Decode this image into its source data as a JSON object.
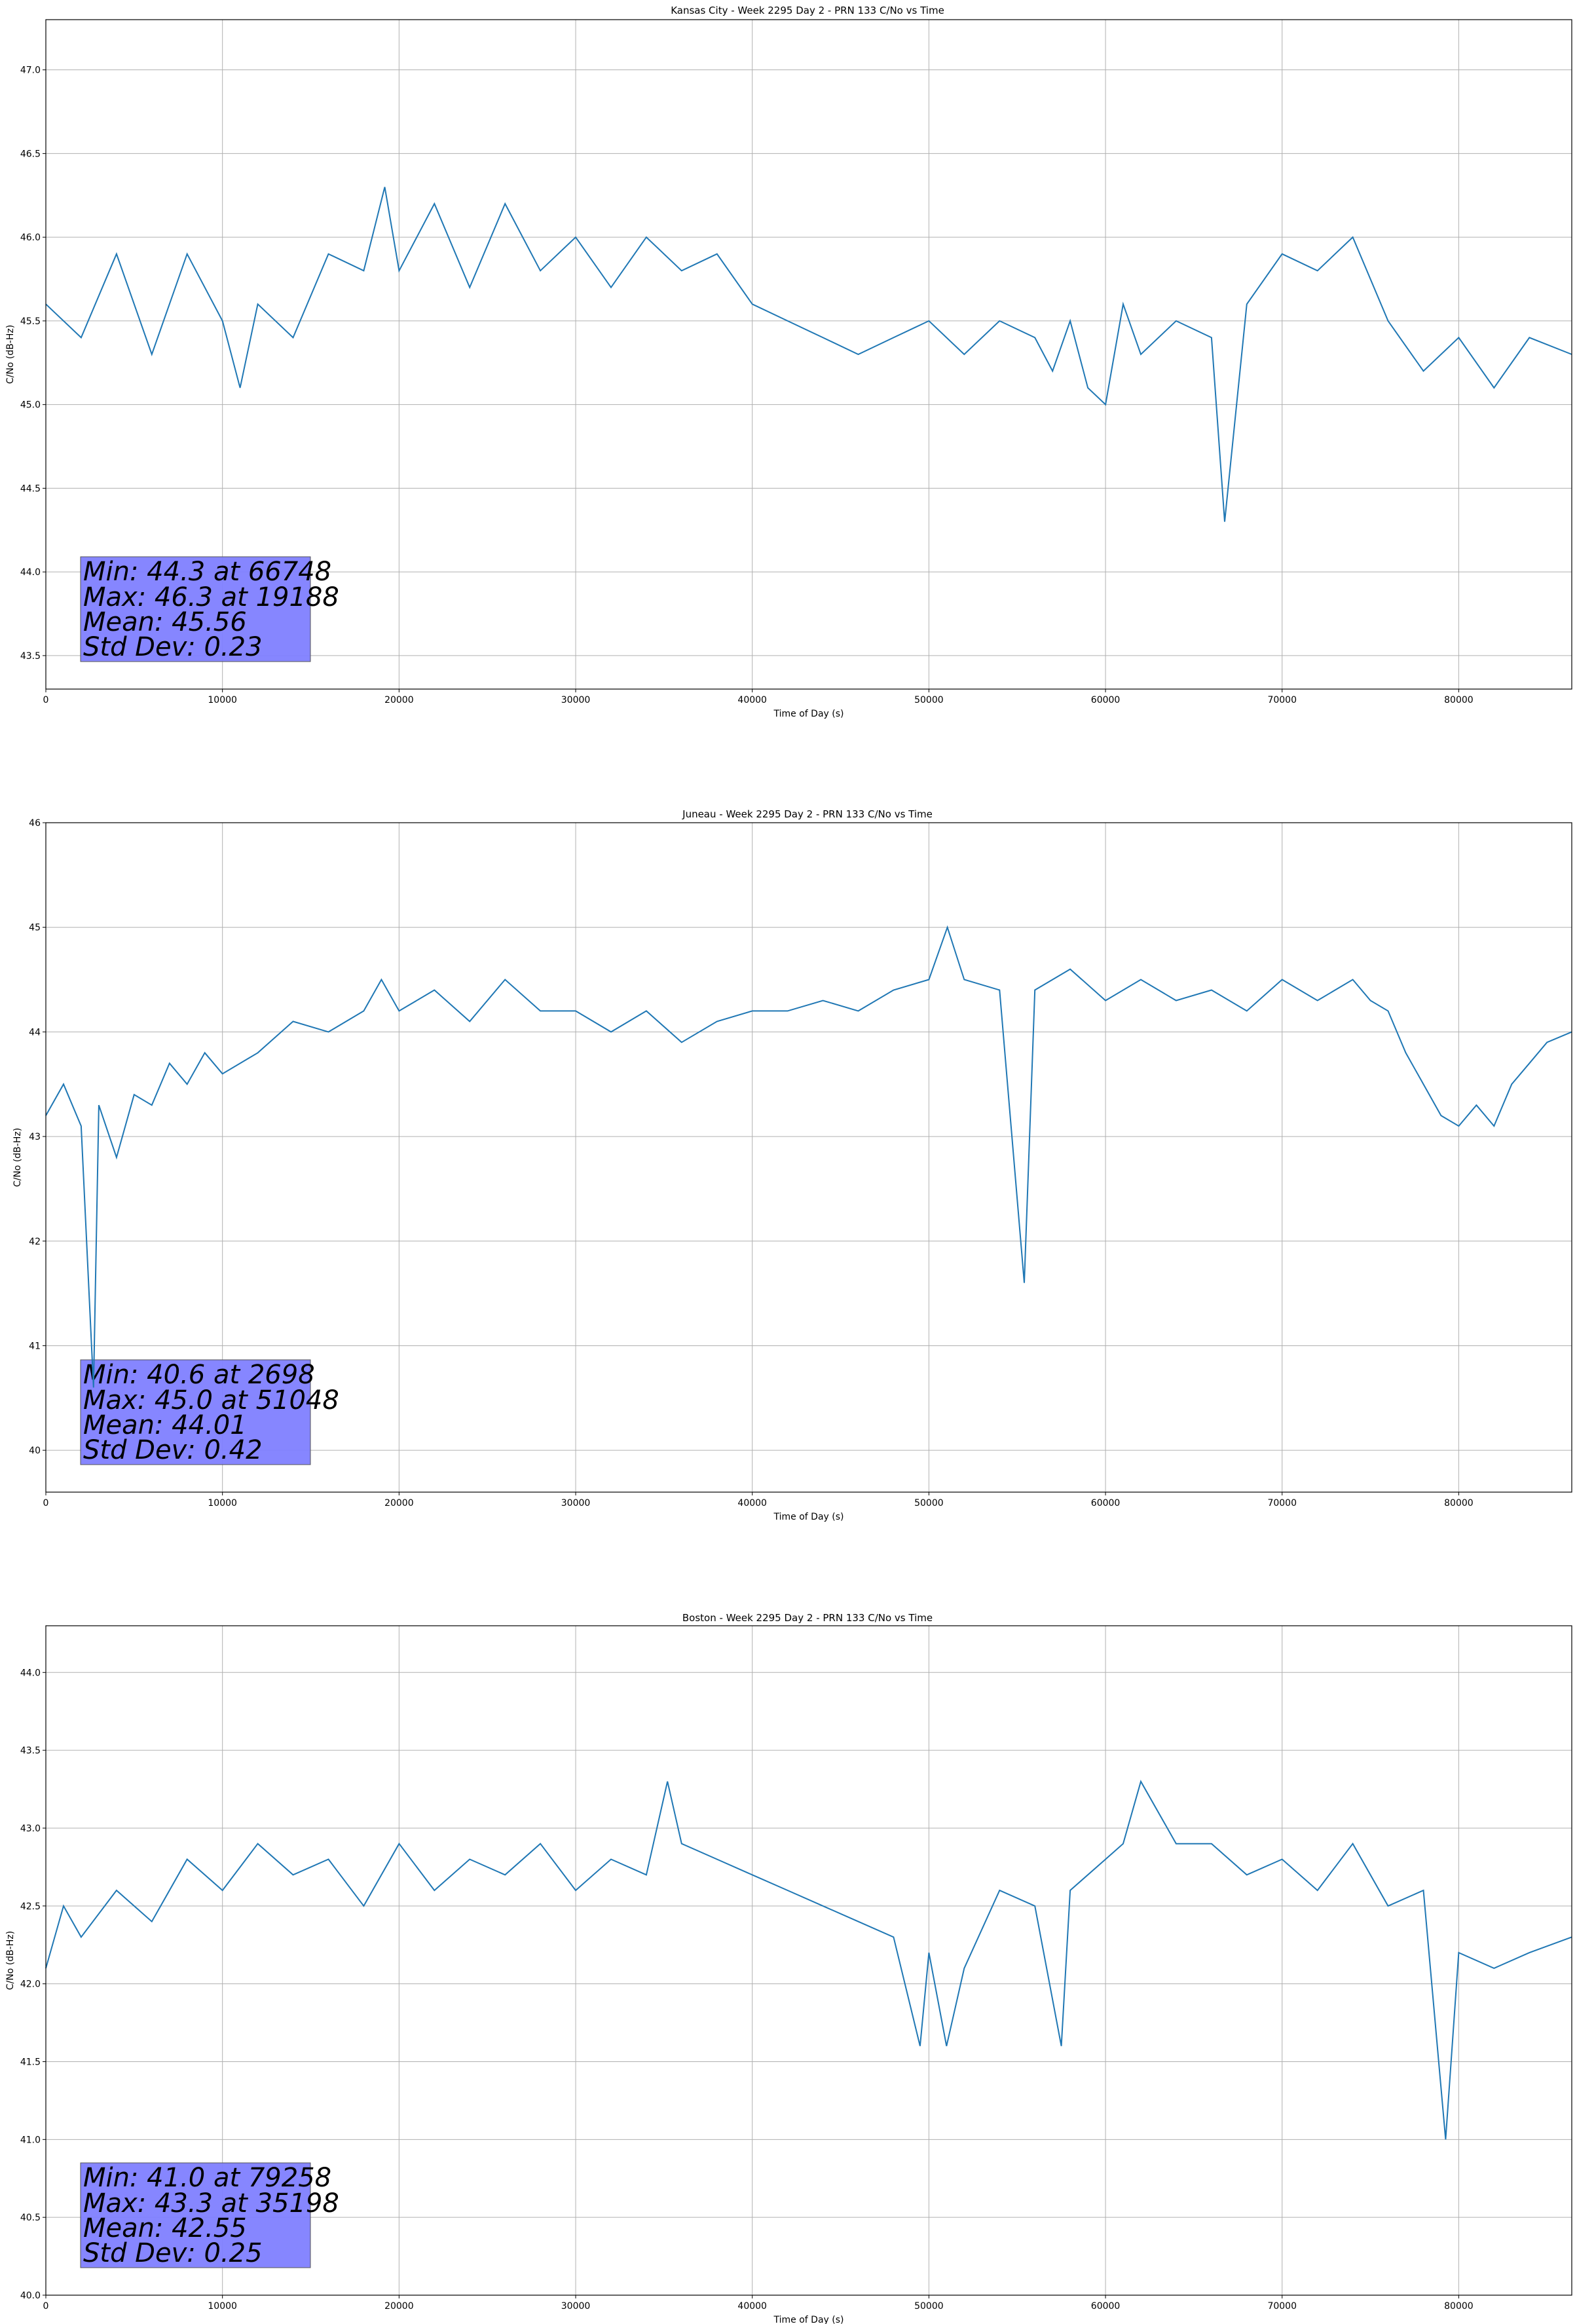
{
  "chart_data": [
    {
      "type": "line",
      "title": "Kansas City - Week 2295 Day 2 - PRN 133 C/No vs Time",
      "xlabel": "Time of Day (s)",
      "ylabel": "C/No (dB-Hz)",
      "xlim": [
        0,
        86400
      ],
      "ylim": [
        43.3,
        47.3
      ],
      "xticks": [
        0,
        10000,
        20000,
        30000,
        40000,
        50000,
        60000,
        70000,
        80000
      ],
      "yticks": [
        43.5,
        44.0,
        44.5,
        45.0,
        45.5,
        46.0,
        46.5,
        47.0
      ],
      "ytick_decimals": 1,
      "grid": true,
      "series_color": "#1f77b4",
      "stats_box_color": "#7f7fff",
      "stats_text": [
        "Min: 44.3 at 66748",
        "Max: 46.3 at 19188",
        "Mean: 45.56",
        "Std Dev: 0.23"
      ],
      "series": [
        {
          "x": [
            0,
            2000,
            4000,
            6000,
            8000,
            10000,
            11000,
            12000,
            14000,
            16000,
            18000,
            19188,
            20000,
            22000,
            24000,
            26000,
            28000,
            30000,
            32000,
            34000,
            36000,
            38000,
            40000,
            42000,
            44000,
            46000,
            48000,
            50000,
            52000,
            54000,
            56000,
            57000,
            58000,
            59000,
            60000,
            61000,
            62000,
            64000,
            66000,
            66748,
            68000,
            70000,
            72000,
            74000,
            76000,
            78000,
            80000,
            82000,
            84000,
            86400
          ],
          "y": [
            45.6,
            45.4,
            45.9,
            45.3,
            45.9,
            45.5,
            45.1,
            45.6,
            45.4,
            45.9,
            45.8,
            46.3,
            45.8,
            46.2,
            45.7,
            46.2,
            45.8,
            46.0,
            45.7,
            46.0,
            45.8,
            45.9,
            45.6,
            45.5,
            45.4,
            45.3,
            45.4,
            45.5,
            45.3,
            45.5,
            45.4,
            45.2,
            45.5,
            45.1,
            45.0,
            45.6,
            45.3,
            45.5,
            45.4,
            44.3,
            45.6,
            45.9,
            45.8,
            46.0,
            45.5,
            45.2,
            45.4,
            45.1,
            45.4,
            45.3
          ]
        }
      ]
    },
    {
      "type": "line",
      "title": "Juneau - Week 2295 Day 2 - PRN 133 C/No vs Time",
      "xlabel": "Time of Day (s)",
      "ylabel": "C/No (dB-Hz)",
      "xlim": [
        0,
        86400
      ],
      "ylim": [
        39.6,
        46.0
      ],
      "xticks": [
        0,
        10000,
        20000,
        30000,
        40000,
        50000,
        60000,
        70000,
        80000
      ],
      "yticks": [
        40,
        41,
        42,
        43,
        44,
        45,
        46
      ],
      "ytick_decimals": 0,
      "grid": true,
      "series_color": "#1f77b4",
      "stats_box_color": "#7f7fff",
      "stats_text": [
        "Min: 40.6 at 2698",
        "Max: 45.0 at 51048",
        "Mean: 44.01",
        "Std Dev: 0.42"
      ],
      "series": [
        {
          "x": [
            0,
            1000,
            2000,
            2698,
            3000,
            4000,
            5000,
            6000,
            7000,
            8000,
            9000,
            10000,
            12000,
            14000,
            16000,
            18000,
            19000,
            20000,
            22000,
            24000,
            26000,
            28000,
            30000,
            32000,
            34000,
            36000,
            38000,
            40000,
            42000,
            44000,
            46000,
            48000,
            50000,
            51048,
            52000,
            54000,
            55400,
            56000,
            58000,
            60000,
            62000,
            64000,
            66000,
            68000,
            70000,
            72000,
            74000,
            75000,
            76000,
            77000,
            78000,
            79000,
            80000,
            81000,
            82000,
            83000,
            84000,
            85000,
            86400
          ],
          "y": [
            43.2,
            43.5,
            43.1,
            40.6,
            43.3,
            42.8,
            43.4,
            43.3,
            43.7,
            43.5,
            43.8,
            43.6,
            43.8,
            44.1,
            44.0,
            44.2,
            44.5,
            44.2,
            44.4,
            44.1,
            44.5,
            44.2,
            44.2,
            44.0,
            44.2,
            43.9,
            44.1,
            44.2,
            44.2,
            44.3,
            44.2,
            44.4,
            44.5,
            45.0,
            44.5,
            44.4,
            41.6,
            44.4,
            44.6,
            44.3,
            44.5,
            44.3,
            44.4,
            44.2,
            44.5,
            44.3,
            44.5,
            44.3,
            44.2,
            43.8,
            43.5,
            43.2,
            43.1,
            43.3,
            43.1,
            43.5,
            43.7,
            43.9,
            44.0
          ]
        }
      ]
    },
    {
      "type": "line",
      "title": "Boston - Week 2295 Day 2 - PRN 133 C/No vs Time",
      "xlabel": "Time of Day (s)",
      "ylabel": "C/No (dB-Hz)",
      "xlim": [
        0,
        86400
      ],
      "ylim": [
        40.0,
        44.3
      ],
      "xticks": [
        0,
        10000,
        20000,
        30000,
        40000,
        50000,
        60000,
        70000,
        80000
      ],
      "yticks": [
        40.0,
        40.5,
        41.0,
        41.5,
        42.0,
        42.5,
        43.0,
        43.5,
        44.0
      ],
      "ytick_decimals": 1,
      "grid": true,
      "series_color": "#1f77b4",
      "stats_box_color": "#7f7fff",
      "stats_text": [
        "Min: 41.0 at 79258",
        "Max: 43.3 at 35198",
        "Mean: 42.55",
        "Std Dev: 0.25"
      ],
      "series": [
        {
          "x": [
            0,
            1000,
            2000,
            4000,
            6000,
            8000,
            10000,
            12000,
            14000,
            16000,
            18000,
            20000,
            22000,
            24000,
            26000,
            28000,
            30000,
            32000,
            34000,
            35198,
            36000,
            38000,
            40000,
            42000,
            44000,
            46000,
            48000,
            49500,
            50000,
            51000,
            52000,
            54000,
            56000,
            57500,
            58000,
            60000,
            61000,
            62000,
            64000,
            66000,
            68000,
            70000,
            72000,
            74000,
            76000,
            78000,
            79258,
            80000,
            82000,
            84000,
            86400
          ],
          "y": [
            42.1,
            42.5,
            42.3,
            42.6,
            42.4,
            42.8,
            42.6,
            42.9,
            42.7,
            42.8,
            42.5,
            42.9,
            42.6,
            42.8,
            42.7,
            42.9,
            42.6,
            42.8,
            42.7,
            43.3,
            42.9,
            42.8,
            42.7,
            42.6,
            42.5,
            42.4,
            42.3,
            41.6,
            42.2,
            41.6,
            42.1,
            42.6,
            42.5,
            41.6,
            42.6,
            42.8,
            42.9,
            43.3,
            42.9,
            42.9,
            42.7,
            42.8,
            42.6,
            42.9,
            42.5,
            42.6,
            41.0,
            42.2,
            42.1,
            42.2,
            42.3
          ]
        }
      ]
    }
  ]
}
